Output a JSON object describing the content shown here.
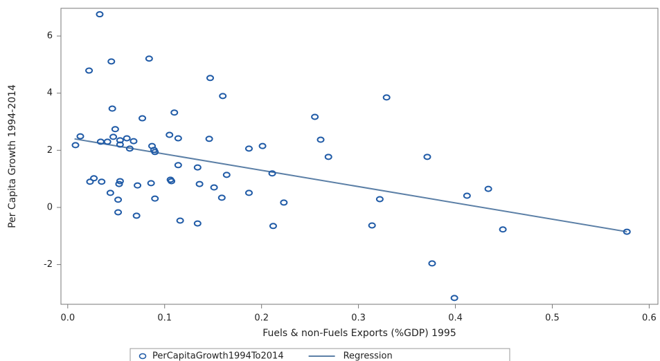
{
  "chart_data": {
    "type": "scatter",
    "x_label": "Fuels & non-Fuels Exports (%GDP) 1995",
    "y_label": "Per Capita Growth 1994-2014",
    "xlim": [
      -0.007,
      0.609
    ],
    "ylim": [
      -3.39,
      6.97
    ],
    "xticks": [
      {
        "value": 0,
        "label": "0.0"
      },
      0.1,
      0.2,
      0.3,
      0.4,
      0.5,
      0.6
    ],
    "yticks": [
      -2,
      0,
      2,
      4,
      6
    ],
    "series": [
      {
        "name": "PerCapitaGrowth1994To2014",
        "color": "#1f5aa6",
        "type": "scatter",
        "x": [
          0.033,
          0.022,
          0.045,
          0.084,
          0.147,
          0.16,
          0.046,
          0.11,
          0.077,
          0.255,
          0.329,
          0.049,
          0.105,
          0.114,
          0.146,
          0.261,
          0.013,
          0.008,
          0.034,
          0.041,
          0.047,
          0.054,
          0.061,
          0.068,
          0.054,
          0.064,
          0.087,
          0.089,
          0.09,
          0.187,
          0.201,
          0.269,
          0.371,
          0.114,
          0.134,
          0.164,
          0.211,
          0.027,
          0.023,
          0.035,
          0.054,
          0.053,
          0.072,
          0.086,
          0.106,
          0.107,
          0.136,
          0.151,
          0.187,
          0.044,
          0.09,
          0.052,
          0.159,
          0.223,
          0.322,
          0.412,
          0.434,
          0.052,
          0.071,
          0.116,
          0.134,
          0.212,
          0.314,
          0.449,
          0.577,
          0.376,
          0.399
        ],
        "values": [
          6.76,
          4.79,
          5.11,
          5.21,
          4.53,
          3.9,
          3.46,
          3.32,
          3.12,
          3.17,
          3.85,
          2.74,
          2.54,
          2.42,
          2.4,
          2.37,
          2.49,
          2.18,
          2.3,
          2.3,
          2.47,
          2.35,
          2.42,
          2.32,
          2.2,
          2.06,
          2.15,
          2.01,
          1.94,
          2.06,
          2.15,
          1.77,
          1.77,
          1.48,
          1.4,
          1.14,
          1.19,
          1.02,
          0.9,
          0.9,
          0.92,
          0.82,
          0.77,
          0.85,
          0.97,
          0.92,
          0.82,
          0.7,
          0.51,
          0.51,
          0.31,
          0.27,
          0.34,
          0.17,
          0.29,
          0.41,
          0.65,
          -0.17,
          -0.29,
          -0.46,
          -0.56,
          -0.65,
          -0.63,
          -0.77,
          -0.85,
          -1.96,
          -3.17
        ]
      },
      {
        "name": "Regression",
        "color": "#5b7fa6",
        "type": "line",
        "x": [
          0.007,
          0.577
        ],
        "values": [
          2.4,
          -0.85
        ]
      }
    ]
  }
}
